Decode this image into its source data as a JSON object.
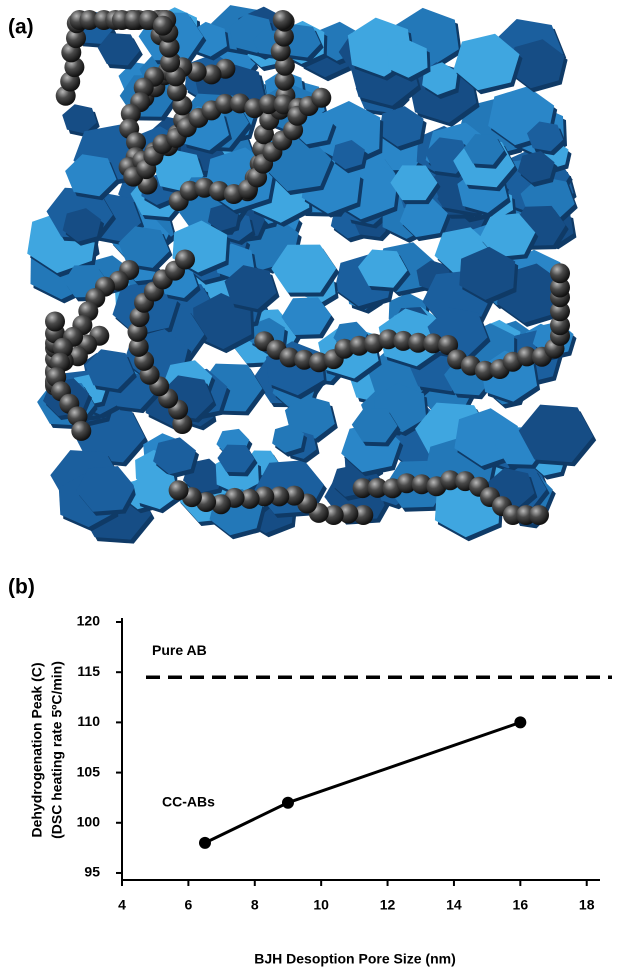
{
  "panel_labels": [
    "(a)",
    "(b)"
  ],
  "chart_data": {
    "type": "line",
    "x_label": "BJH Desoption Pore Size (nm)",
    "y_label": [
      "Dehydrogenation Peak (C)",
      "(DSC heating rate 5ºC/min)"
    ],
    "x": [
      6.5,
      9,
      16
    ],
    "series": [
      {
        "name": "CC-ABs",
        "color": "#000000",
        "values": [
          98,
          102,
          110
        ]
      }
    ],
    "reference_line": {
      "label": "Pure AB",
      "value": 114.5,
      "color": "#000000"
    },
    "xlim": [
      4,
      18.4
    ],
    "ylim": [
      94.3,
      120
    ],
    "xticks": [
      4,
      6,
      8,
      10,
      12,
      14,
      16,
      18
    ],
    "yticks": [
      95,
      100,
      105,
      110,
      115,
      120
    ]
  }
}
